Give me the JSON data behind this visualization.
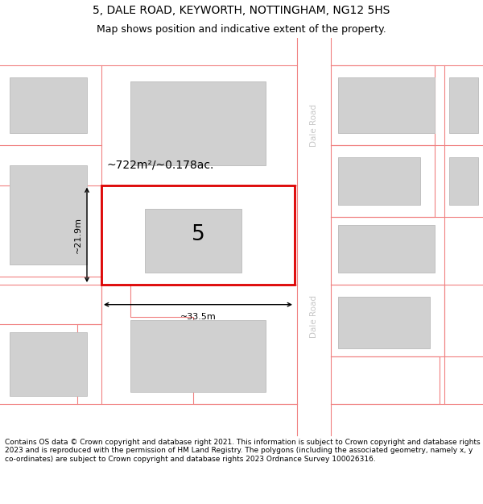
{
  "title_line1": "5, DALE ROAD, KEYWORTH, NOTTINGHAM, NG12 5HS",
  "title_line2": "Map shows position and indicative extent of the property.",
  "footer_text": "Contains OS data © Crown copyright and database right 2021. This information is subject to Crown copyright and database rights 2023 and is reproduced with the permission of HM Land Registry. The polygons (including the associated geometry, namely x, y co-ordinates) are subject to Crown copyright and database rights 2023 Ordnance Survey 100026316.",
  "background_color": "#ffffff",
  "road_color": "#f08080",
  "building_fill": "#d0d0d0",
  "building_edge": "#c0c0c0",
  "plot_fill": "#f8f8f8",
  "subject_fill": "#ffffff",
  "subject_edge": "#dd0000",
  "subject_edge_width": 2.0,
  "area_text": "~722m²/~0.178ac.",
  "width_text": "~33.5m",
  "height_text": "~21.9m",
  "number_text": "5",
  "dale_road_label": "Dale Road",
  "road_label_color": "#c8c8c8",
  "title_fontsize": 10,
  "subtitle_fontsize": 9,
  "footer_fontsize": 6.5
}
